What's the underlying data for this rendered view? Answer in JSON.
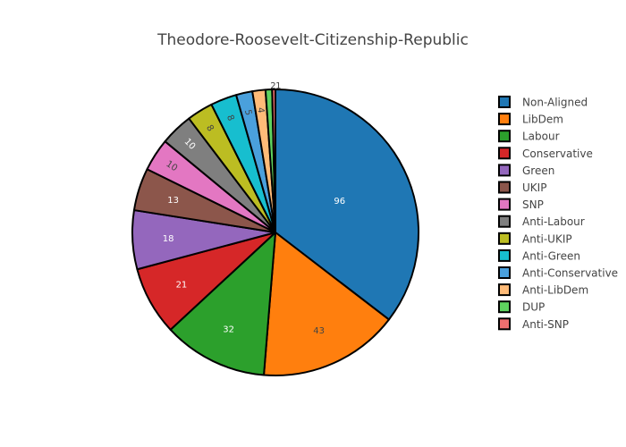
{
  "chart_data": {
    "type": "pie",
    "title": "Theodore-Roosevelt-Citizenship-Republic",
    "legend_position": "right",
    "direction": "clockwise",
    "start": "top",
    "slices": [
      {
        "label": "Non-Aligned",
        "value": 96,
        "color": "#1f77b4",
        "text_color": "#ffffff"
      },
      {
        "label": "LibDem",
        "value": 43,
        "color": "#ff7f0e",
        "text_color": "#444444"
      },
      {
        "label": "Labour",
        "value": 32,
        "color": "#2ca02c",
        "text_color": "#ffffff"
      },
      {
        "label": "Conservative",
        "value": 21,
        "color": "#d62728",
        "text_color": "#ffffff"
      },
      {
        "label": "Green",
        "value": 18,
        "color": "#9467bd",
        "text_color": "#ffffff"
      },
      {
        "label": "UKIP",
        "value": 13,
        "color": "#8c564b",
        "text_color": "#ffffff"
      },
      {
        "label": "SNP",
        "value": 10,
        "color": "#e377c2",
        "text_color": "#444444"
      },
      {
        "label": "Anti-Labour",
        "value": 10,
        "color": "#7f7f7f",
        "text_color": "#ffffff"
      },
      {
        "label": "Anti-UKIP",
        "value": 8,
        "color": "#bcbd22",
        "text_color": "#444444"
      },
      {
        "label": "Anti-Green",
        "value": 8,
        "color": "#17becf",
        "text_color": "#444444"
      },
      {
        "label": "Anti-Conservative",
        "value": 5,
        "color": "#4aa0dc",
        "text_color": "#444444"
      },
      {
        "label": "Anti-LibDem",
        "value": 4,
        "color": "#ffbb78",
        "text_color": "#444444"
      },
      {
        "label": "DUP",
        "value": 2,
        "color": "#5fd35f",
        "text_color": "#444444"
      },
      {
        "label": "Anti-SNP",
        "value": 1,
        "color": "#ef6f6f",
        "text_color": "#444444"
      }
    ]
  }
}
